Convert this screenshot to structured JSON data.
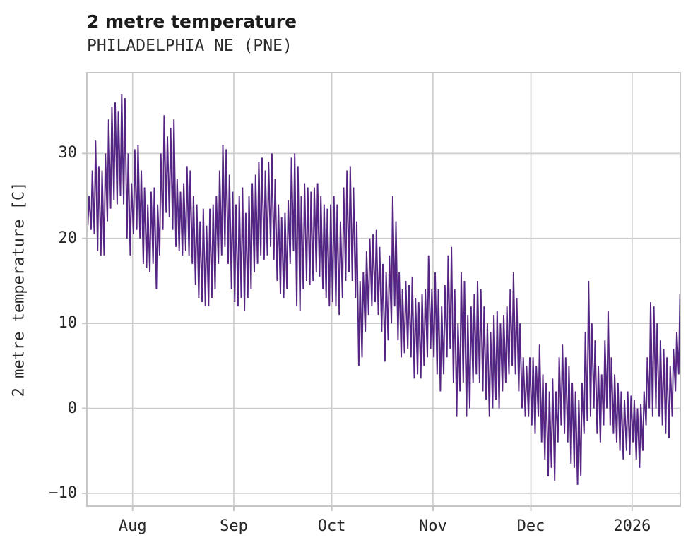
{
  "figure": {
    "background": "#ffffff",
    "text_color": "#262626",
    "title_color": "#1c1c1c"
  },
  "chart_data": {
    "type": "line",
    "title": "2 metre temperature",
    "subtitle": "PHILADELPHIA NE (PNE)",
    "ylabel": "2 metre temperature [C]",
    "xlabel": "",
    "legend": null,
    "grid": true,
    "grid_color": "#cdcdcd",
    "frame_color": "#c6c6c6",
    "line_color": "#552583",
    "ylim": [
      -11.5,
      39.5
    ],
    "yticks": [
      -10,
      0,
      10,
      20,
      30
    ],
    "x_start_date": "2025-07-18",
    "x_end_date": "2026-01-15",
    "x_ticks": [
      {
        "label": "Aug",
        "date": "2025-08-01"
      },
      {
        "label": "Sep",
        "date": "2025-09-01"
      },
      {
        "label": "Oct",
        "date": "2025-10-01"
      },
      {
        "label": "Nov",
        "date": "2025-11-01"
      },
      {
        "label": "Dec",
        "date": "2025-12-01"
      },
      {
        "label": "2026",
        "date": "2026-01-01"
      }
    ],
    "daily_min": [
      21.5,
      21,
      20.5,
      18.5,
      18,
      18,
      22,
      23.5,
      24.5,
      24,
      25,
      24,
      20,
      18,
      20.5,
      21,
      20,
      17,
      16.5,
      16,
      17,
      14,
      18,
      21,
      23,
      22.5,
      21,
      19,
      18.5,
      18,
      18.5,
      18,
      17,
      14.5,
      13,
      12.5,
      12,
      12,
      13,
      14,
      17,
      18,
      19,
      17,
      14,
      12.5,
      12,
      13,
      11.5,
      13,
      14,
      16,
      17,
      18,
      17.5,
      18,
      19,
      17.5,
      15,
      13.5,
      13,
      14,
      17,
      18.5,
      12,
      11.5,
      14,
      15,
      14.5,
      15,
      16,
      15.5,
      14,
      13,
      12,
      12.5,
      12,
      11,
      13,
      15,
      16,
      15,
      13,
      5,
      6,
      9,
      11,
      12,
      12.5,
      11,
      9,
      5.5,
      8,
      10,
      12,
      8,
      6,
      6.5,
      7,
      6,
      3.5,
      4,
      3.5,
      5,
      6,
      7,
      6,
      4,
      2,
      4,
      6,
      7,
      3,
      -1,
      2,
      3,
      -1,
      0,
      3,
      4,
      3,
      2,
      1,
      -1,
      0,
      1,
      0,
      2,
      3,
      4,
      5,
      4,
      2,
      0,
      -1,
      -1,
      -2,
      -3,
      -1,
      -4,
      -6,
      -8,
      -7,
      -8.5,
      -4,
      -2,
      -3,
      -4,
      -6.5,
      -7,
      -9,
      -8,
      -3,
      -1.5,
      -1,
      0,
      -3,
      -4,
      -2,
      0,
      -2,
      -3,
      -4,
      -5,
      -6,
      -5,
      -5.5,
      -4,
      -6,
      -7,
      -5,
      -2,
      0,
      -1,
      0,
      -1,
      -2,
      -3,
      -3.5,
      -1,
      2,
      4
    ],
    "daily_max": [
      25,
      28,
      31.5,
      28.5,
      28,
      30,
      34,
      35.5,
      36,
      35,
      37,
      36.5,
      30,
      26.5,
      30.5,
      31,
      28,
      26,
      24,
      25.5,
      26,
      24,
      30,
      34.5,
      32,
      33,
      34,
      27,
      25.5,
      26.5,
      28.5,
      28,
      25,
      24,
      22,
      23.5,
      21.5,
      23.5,
      24,
      25,
      28,
      31,
      30.5,
      27.5,
      25.5,
      24,
      25,
      26,
      23,
      25,
      26.5,
      27.5,
      29,
      29.5,
      28,
      29,
      30,
      27,
      24,
      22.5,
      23,
      24.5,
      29.5,
      30,
      28.5,
      25,
      26.5,
      26,
      25.5,
      26,
      26.5,
      25,
      24,
      23.5,
      24,
      25,
      24,
      22,
      26,
      28,
      28.5,
      26,
      22,
      15,
      16,
      18.5,
      20,
      20.5,
      21,
      19,
      17,
      16,
      18,
      25,
      22,
      16,
      14,
      15,
      14.5,
      15.5,
      13,
      12.5,
      13.5,
      14,
      18,
      14,
      16,
      14,
      12,
      14.5,
      18,
      19,
      14,
      10,
      16,
      15,
      11,
      12,
      13.5,
      15,
      14,
      12,
      10,
      9,
      11,
      11.5,
      10,
      11,
      12,
      14,
      16,
      13,
      10,
      6,
      5,
      6,
      6,
      5,
      7.5,
      4,
      3,
      2,
      3.5,
      2,
      6,
      7.5,
      6,
      5,
      3,
      2,
      1,
      3,
      9,
      15,
      10,
      8,
      5,
      4,
      8,
      11.5,
      6,
      4,
      3,
      2,
      1,
      2,
      1.5,
      1,
      0,
      0.5,
      2,
      6,
      12.5,
      12,
      10,
      8,
      7,
      6,
      5,
      7,
      9,
      13.5
    ]
  }
}
